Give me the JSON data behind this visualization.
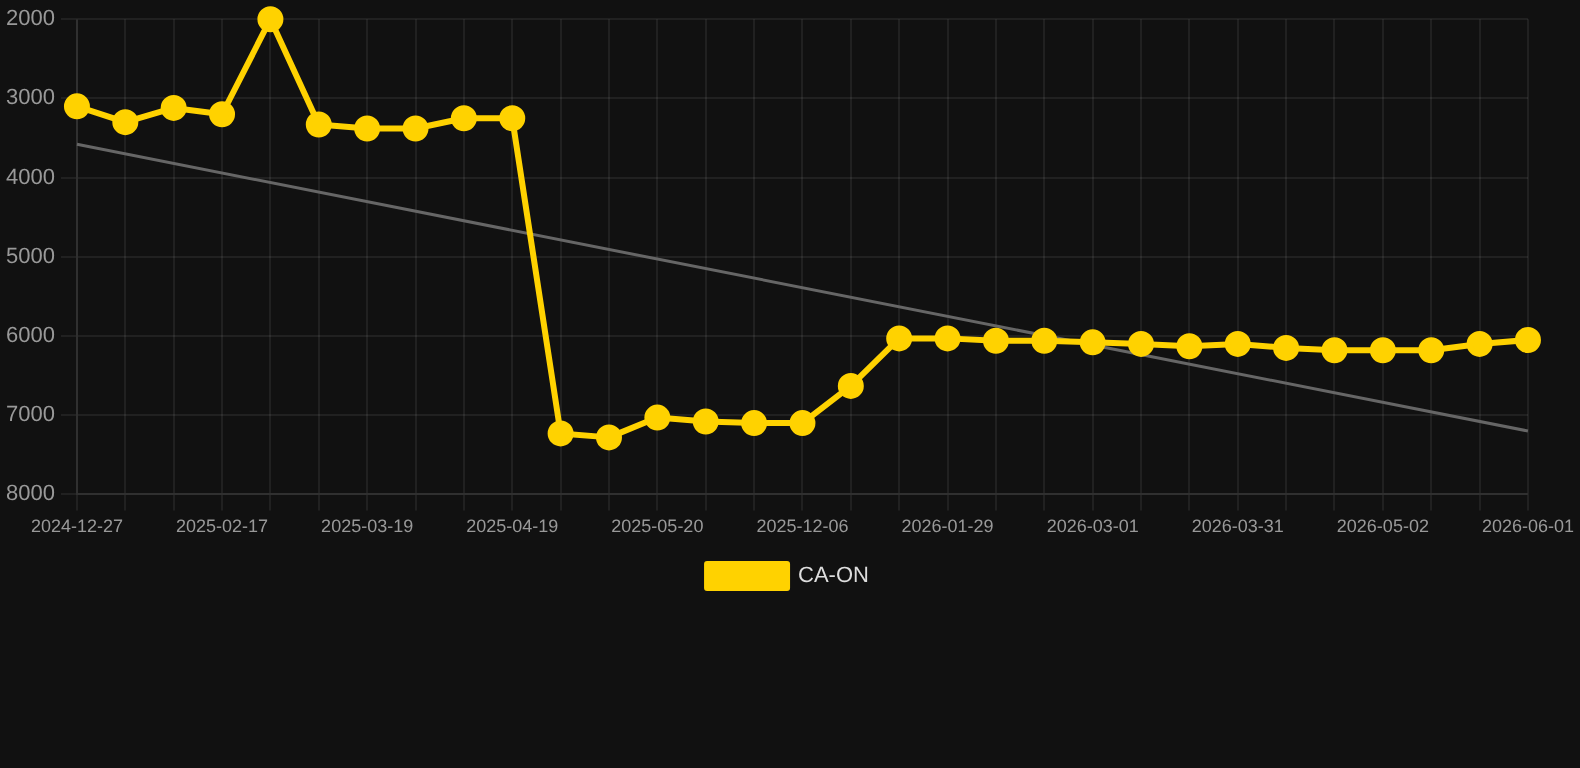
{
  "chart_data": {
    "type": "line",
    "categories": [
      "2024-12-27",
      null,
      null,
      "2025-02-17",
      null,
      null,
      "2025-03-19",
      null,
      null,
      "2025-04-19",
      null,
      null,
      "2025-05-20",
      null,
      null,
      "2025-12-06",
      null,
      null,
      "2026-01-29",
      null,
      null,
      "2026-03-01",
      null,
      null,
      "2026-03-31",
      null,
      null,
      "2026-05-02",
      null,
      null,
      "2026-06-01"
    ],
    "series": [
      {
        "name": "CA-ON",
        "color": "#ffd200",
        "marker": "circle",
        "values": [
          3100,
          3300,
          3120,
          3200,
          2000,
          3330,
          3380,
          3380,
          3250,
          3250,
          7230,
          7280,
          7030,
          7080,
          7100,
          7100,
          6630,
          6030,
          6030,
          6060,
          6060,
          6080,
          6100,
          6130,
          6100,
          6150,
          6180,
          6180,
          6180,
          6100,
          6050
        ]
      },
      {
        "type": "line",
        "color": "#666666",
        "marker": "none",
        "values": [
          3580,
          null,
          null,
          null,
          null,
          null,
          null,
          null,
          null,
          null,
          null,
          null,
          null,
          null,
          null,
          null,
          null,
          null,
          null,
          null,
          null,
          null,
          null,
          null,
          null,
          null,
          null,
          null,
          null,
          null,
          7200
        ]
      }
    ],
    "ylim": [
      8000,
      2000
    ],
    "yticks": [
      2000,
      3000,
      4000,
      5000,
      6000,
      7000,
      8000
    ],
    "grid": true,
    "legend": "bottom"
  }
}
